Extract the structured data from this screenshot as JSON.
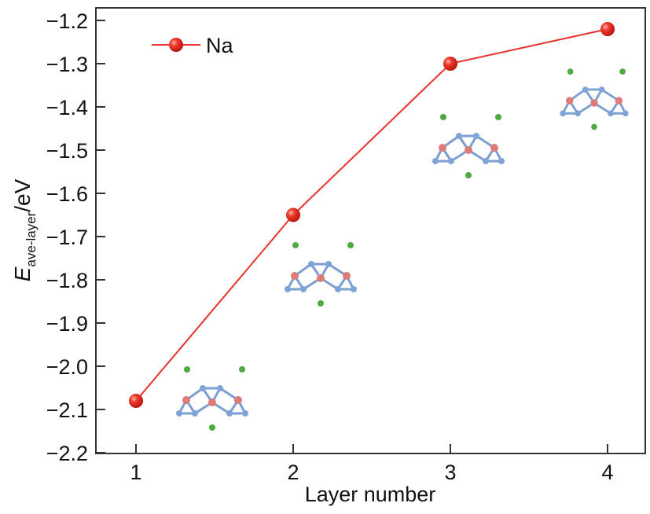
{
  "chart_data": {
    "type": "line",
    "title": "",
    "xlabel": "Layer number",
    "ylabel_main": "E",
    "ylabel_sub": "ave-layer",
    "ylabel_unit": "/eV",
    "x": [
      1,
      2,
      3,
      4
    ],
    "xticks": [
      "1",
      "2",
      "3",
      "4"
    ],
    "xlim": [
      0.75,
      4.25
    ],
    "ylim": [
      -2.2,
      -1.17
    ],
    "yticks": [
      "−1.2",
      "−1.3",
      "−1.4",
      "−1.5",
      "−1.6",
      "−1.7",
      "−1.8",
      "−1.9",
      "−2.0",
      "−2.1",
      "−2.2"
    ],
    "ytick_values": [
      -1.2,
      -1.3,
      -1.4,
      -1.5,
      -1.6,
      -1.7,
      -1.8,
      -1.9,
      -2.0,
      -2.1,
      -2.2
    ],
    "series": [
      {
        "name": "Na",
        "values": [
          -2.08,
          -1.65,
          -1.3,
          -1.22
        ],
        "color": "#e8312a"
      }
    ],
    "legend": {
      "placement": "top-left",
      "entries": [
        "Na"
      ]
    },
    "grid": false
  }
}
